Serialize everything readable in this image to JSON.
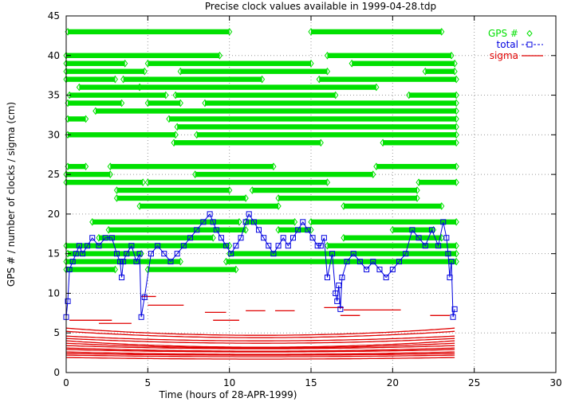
{
  "chart_data": {
    "type": "scatter",
    "title": "Precise clock values available in 1999-04-28.tdp",
    "xlabel": "Time (hours of 28-APR-1999)",
    "ylabel": "GPS # / number of clocks / sigma (cm)",
    "xlim": [
      0,
      30
    ],
    "ylim": [
      0,
      45
    ],
    "xticks": [
      "0",
      "5",
      "10",
      "15",
      "20",
      "25",
      "30"
    ],
    "yticks": [
      "0",
      "5",
      "10",
      "15",
      "20",
      "25",
      "30",
      "35",
      "40",
      "45"
    ],
    "grid": true,
    "legend_position": "top-right",
    "colors": {
      "gps": "#00e000",
      "total": "#0000e0",
      "sigma": "#e00000"
    },
    "series": [
      {
        "name": "GPS #",
        "marker": "diamond",
        "segments": [
          {
            "y": 43,
            "ranges": [
              [
                0.1,
                10.0
              ],
              [
                15.0,
                23.0
              ]
            ]
          },
          {
            "y": 40,
            "ranges": [
              [
                0.0,
                9.4
              ],
              [
                16.0,
                23.6
              ]
            ]
          },
          {
            "y": 39,
            "ranges": [
              [
                0.0,
                3.6
              ],
              [
                5.0,
                15.0
              ],
              [
                17.5,
                23.8
              ]
            ]
          },
          {
            "y": 38,
            "ranges": [
              [
                0.0,
                4.8
              ],
              [
                7.0,
                16.0
              ],
              [
                22.0,
                23.8
              ]
            ]
          },
          {
            "y": 37,
            "ranges": [
              [
                0.0,
                3.0
              ],
              [
                3.5,
                12.0
              ],
              [
                15.5,
                23.9
              ]
            ]
          },
          {
            "y": 36,
            "ranges": [
              [
                0.8,
                4.5
              ],
              [
                4.5,
                19.0
              ]
            ]
          },
          {
            "y": 35,
            "ranges": [
              [
                0.2,
                6.1
              ],
              [
                6.7,
                16.5
              ],
              [
                21.0,
                23.9
              ]
            ]
          },
          {
            "y": 34,
            "ranges": [
              [
                0.1,
                3.4
              ],
              [
                5.0,
                7.0
              ],
              [
                8.5,
                23.9
              ]
            ]
          },
          {
            "y": 33,
            "ranges": [
              [
                1.8,
                23.9
              ]
            ]
          },
          {
            "y": 32,
            "ranges": [
              [
                0.1,
                1.2
              ],
              [
                6.3,
                23.9
              ]
            ]
          },
          {
            "y": 31,
            "ranges": [
              [
                6.8,
                23.9
              ]
            ]
          },
          {
            "y": 30,
            "ranges": [
              [
                0.1,
                6.7
              ],
              [
                8.0,
                23.9
              ]
            ]
          },
          {
            "y": 29,
            "ranges": [
              [
                6.6,
                15.6
              ],
              [
                19.4,
                23.9
              ]
            ]
          },
          {
            "y": 26,
            "ranges": [
              [
                0.1,
                1.2
              ],
              [
                2.7,
                12.7
              ],
              [
                19.0,
                23.9
              ]
            ]
          },
          {
            "y": 25,
            "ranges": [
              [
                0.0,
                2.7
              ],
              [
                7.9,
                18.8
              ]
            ]
          },
          {
            "y": 24,
            "ranges": [
              [
                0.0,
                4.7
              ],
              [
                5.0,
                16.0
              ],
              [
                21.6,
                23.9
              ]
            ]
          },
          {
            "y": 23,
            "ranges": [
              [
                3.1,
                10.0
              ],
              [
                11.4,
                21.5
              ]
            ]
          },
          {
            "y": 22,
            "ranges": [
              [
                3.1,
                11.0
              ],
              [
                13.0,
                21.5
              ]
            ]
          },
          {
            "y": 21,
            "ranges": [
              [
                4.5,
                13.0
              ],
              [
                17.0,
                23.0
              ]
            ]
          },
          {
            "y": 19,
            "ranges": [
              [
                1.6,
                10.6
              ],
              [
                11.0,
                14.0
              ],
              [
                15.0,
                23.9
              ]
            ]
          },
          {
            "y": 18,
            "ranges": [
              [
                2.6,
                11.0
              ],
              [
                13.0,
                15.0
              ],
              [
                20.0,
                22.5
              ]
            ]
          },
          {
            "y": 17,
            "ranges": [
              [
                2.0,
                9.0
              ],
              [
                17.0,
                23.0
              ]
            ]
          },
          {
            "y": 16,
            "ranges": [
              [
                0.0,
                10.0
              ],
              [
                16.0,
                23.9
              ]
            ]
          },
          {
            "y": 15,
            "ranges": [
              [
                0.1,
                4.6
              ],
              [
                10.0,
                23.9
              ]
            ]
          },
          {
            "y": 14,
            "ranges": [
              [
                0.0,
                7.0
              ],
              [
                9.8,
                23.9
              ]
            ]
          },
          {
            "y": 13,
            "ranges": [
              [
                0.0,
                3.0
              ],
              [
                5.0,
                10.4
              ]
            ]
          }
        ]
      },
      {
        "name": "total",
        "marker": "square",
        "x": [
          0,
          0.1,
          0.2,
          0.4,
          0.6,
          0.8,
          1.0,
          1.3,
          1.6,
          2.0,
          2.4,
          2.8,
          3.1,
          3.3,
          3.4,
          3.5,
          3.7,
          4.0,
          4.3,
          4.5,
          4.6,
          4.8,
          5.2,
          5.6,
          6.0,
          6.4,
          6.8,
          7.2,
          7.6,
          8.0,
          8.4,
          8.8,
          9.0,
          9.2,
          9.5,
          9.8,
          10.1,
          10.4,
          10.7,
          11.0,
          11.2,
          11.5,
          11.8,
          12.1,
          12.4,
          12.7,
          13.0,
          13.3,
          13.6,
          13.9,
          14.2,
          14.5,
          14.8,
          15.1,
          15.4,
          15.6,
          15.8,
          16.0,
          16.3,
          16.5,
          16.6,
          16.7,
          16.8,
          16.9,
          17.2,
          17.6,
          18.0,
          18.4,
          18.8,
          19.2,
          19.6,
          20.0,
          20.4,
          20.8,
          21.2,
          21.6,
          22.0,
          22.4,
          22.8,
          23.1,
          23.3,
          23.4,
          23.5,
          23.6,
          23.7,
          23.8
        ],
        "values": [
          7,
          9,
          13,
          14,
          15,
          16,
          15,
          16,
          17,
          16,
          17,
          17,
          15,
          14,
          12,
          14,
          15,
          16,
          14,
          15,
          7,
          9.5,
          15,
          16,
          15,
          14,
          15,
          16,
          17,
          18,
          19,
          20,
          19,
          18,
          17,
          16,
          15,
          16,
          17,
          19,
          20,
          19,
          18,
          17,
          16,
          15,
          16,
          17,
          16,
          17,
          18,
          19,
          18,
          17,
          16,
          16,
          17,
          12,
          15,
          10,
          9,
          11,
          8,
          12,
          14,
          15,
          14,
          13,
          14,
          13,
          12,
          13,
          14,
          15,
          18,
          17,
          16,
          18,
          16,
          19,
          17,
          15,
          12,
          14,
          7,
          8
        ]
      },
      {
        "name": "sigma",
        "marker": "line",
        "curves": [
          {
            "offset": 5.6,
            "center_drop": 0.9
          },
          {
            "offset": 5.2,
            "center_drop": 0.8
          },
          {
            "offset": 4.6,
            "center_drop": 0.6
          },
          {
            "offset": 4.3,
            "center_drop": 0.6
          },
          {
            "offset": 4.0,
            "center_drop": 0.8
          },
          {
            "offset": 3.7,
            "center_drop": 0.6
          },
          {
            "offset": 3.4,
            "center_drop": 0.4
          },
          {
            "offset": 3.1,
            "center_drop": 0.4
          },
          {
            "offset": 2.9,
            "center_drop": 0.3
          },
          {
            "offset": 2.6,
            "center_drop": 0.3
          },
          {
            "offset": 2.4,
            "center_drop": 0.2
          },
          {
            "offset": 2.2,
            "center_drop": 0.2
          },
          {
            "offset": 1.9,
            "center_drop": 0.2
          }
        ],
        "short_segments": [
          {
            "y": 7.8,
            "x": [
              11.0,
              12.2
            ]
          },
          {
            "y": 7.8,
            "x": [
              12.8,
              14.0
            ]
          },
          {
            "y": 8.2,
            "x": [
              15.8,
              17.0
            ]
          },
          {
            "y": 7.9,
            "x": [
              17.0,
              20.5
            ]
          },
          {
            "y": 7.2,
            "x": [
              22.3,
              23.5
            ]
          },
          {
            "y": 6.6,
            "x": [
              0.2,
              2.8
            ]
          },
          {
            "y": 6.2,
            "x": [
              2.0,
              4.0
            ]
          },
          {
            "y": 9.6,
            "x": [
              4.6,
              5.5
            ]
          },
          {
            "y": 8.5,
            "x": [
              5.0,
              7.2
            ]
          },
          {
            "y": 7.6,
            "x": [
              8.5,
              9.8
            ]
          },
          {
            "y": 6.6,
            "x": [
              9.0,
              10.6
            ]
          },
          {
            "y": 7.2,
            "x": [
              16.8,
              18.0
            ]
          }
        ]
      }
    ]
  }
}
